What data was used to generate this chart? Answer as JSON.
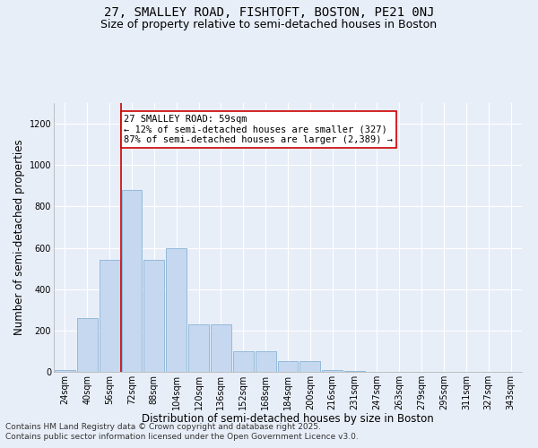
{
  "title_line1": "27, SMALLEY ROAD, FISHTOFT, BOSTON, PE21 0NJ",
  "title_line2": "Size of property relative to semi-detached houses in Boston",
  "xlabel": "Distribution of semi-detached houses by size in Boston",
  "ylabel": "Number of semi-detached properties",
  "categories": [
    "24sqm",
    "40sqm",
    "56sqm",
    "72sqm",
    "88sqm",
    "104sqm",
    "120sqm",
    "136sqm",
    "152sqm",
    "168sqm",
    "184sqm",
    "200sqm",
    "216sqm",
    "231sqm",
    "247sqm",
    "263sqm",
    "279sqm",
    "295sqm",
    "311sqm",
    "327sqm",
    "343sqm"
  ],
  "values": [
    10,
    260,
    540,
    880,
    540,
    600,
    230,
    230,
    100,
    100,
    50,
    50,
    10,
    3,
    2,
    1,
    1,
    0,
    0,
    0,
    0
  ],
  "bar_color": "#c5d8f0",
  "bar_edge_color": "#7aaad0",
  "redline_x": 2.5,
  "annotation_text": "27 SMALLEY ROAD: 59sqm\n← 12% of semi-detached houses are smaller (327)\n87% of semi-detached houses are larger (2,389) →",
  "annotation_box_color": "#ffffff",
  "annotation_box_edge": "#cc0000",
  "redline_color": "#cc0000",
  "footnote1": "Contains HM Land Registry data © Crown copyright and database right 2025.",
  "footnote2": "Contains public sector information licensed under the Open Government Licence v3.0.",
  "ylim": [
    0,
    1300
  ],
  "yticks": [
    0,
    200,
    400,
    600,
    800,
    1000,
    1200
  ],
  "background_color": "#e8eef8",
  "grid_color": "#ffffff",
  "title_fontsize": 10,
  "subtitle_fontsize": 9,
  "axis_label_fontsize": 8.5,
  "tick_fontsize": 7,
  "annotation_fontsize": 7.5,
  "footnote_fontsize": 6.5
}
